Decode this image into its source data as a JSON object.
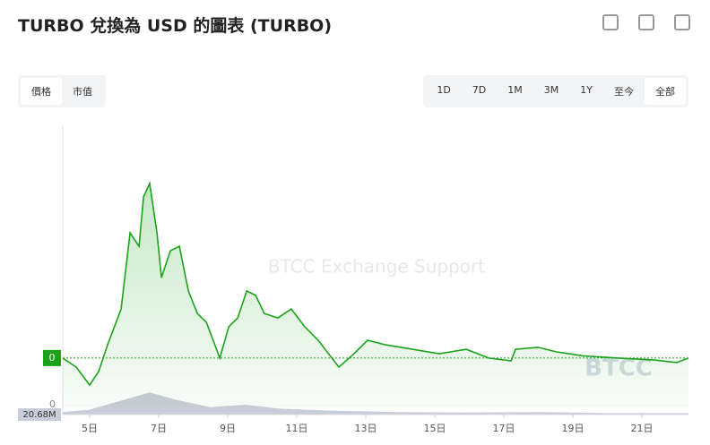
{
  "header": {
    "title": "TURBO 兌換為 USD 的圖表 (TURBO)"
  },
  "tabs": [
    "價格",
    "市值"
  ],
  "ranges": [
    "1D",
    "7D",
    "1M",
    "3M",
    "1Y",
    "至今",
    "全部"
  ],
  "active_range": "全部",
  "chart_data": {
    "type": "line",
    "watermark": "BTCC Exchange Support",
    "logo": "BTCC",
    "price_tag": "0",
    "volume_zero": "0",
    "volume_tag": "20.68M",
    "x": [
      4.22,
      4.61,
      5.0,
      5.26,
      5.52,
      5.91,
      6.17,
      6.43,
      6.56,
      6.74,
      6.95,
      7.08,
      7.34,
      7.6,
      7.73,
      7.86,
      8.12,
      8.38,
      8.77,
      9.03,
      9.29,
      9.55,
      9.81,
      10.06,
      10.45,
      10.84,
      11.23,
      11.62,
      12.22,
      12.66,
      13.05,
      13.57,
      14.35,
      15.13,
      15.91,
      16.56,
      17.21,
      17.34,
      17.99,
      18.51,
      19.29,
      20.32,
      21.36,
      22.01,
      22.35
    ],
    "series": [
      {
        "name": "TURBO",
        "color": "#1aa31a",
        "values": [
          1.75,
          1.43,
          0.79,
          1.27,
          2.22,
          3.49,
          6.19,
          5.71,
          7.46,
          7.94,
          6.19,
          4.6,
          5.56,
          5.71,
          4.92,
          4.13,
          3.33,
          3.02,
          1.75,
          2.86,
          3.17,
          4.13,
          3.97,
          3.33,
          3.17,
          3.49,
          2.86,
          2.38,
          1.43,
          1.9,
          2.38,
          2.22,
          2.06,
          1.9,
          2.06,
          1.75,
          1.65,
          2.06,
          2.13,
          1.97,
          1.83,
          1.75,
          1.68,
          1.59,
          1.75
        ]
      },
      {
        "name": "Volume",
        "color": "#c9ccd9",
        "axis": "y2",
        "x": [
          4.22,
          5.0,
          6.0,
          6.74,
          7.5,
          8.5,
          9.5,
          10.5,
          12.0,
          14.0,
          16.0,
          18.0,
          20.0,
          22.35
        ],
        "values": [
          5,
          10,
          30,
          45,
          30,
          15,
          20,
          12,
          8,
          5,
          4,
          5,
          3,
          3
        ]
      }
    ],
    "xlim": [
      4.22,
      22.35
    ],
    "xticks": [
      {
        "value": 5,
        "label": "5日"
      },
      {
        "value": 7,
        "label": "7日"
      },
      {
        "value": 9,
        "label": "9日"
      },
      {
        "value": 11,
        "label": "11日"
      },
      {
        "value": 13,
        "label": "13日"
      },
      {
        "value": 15,
        "label": "15日"
      },
      {
        "value": 17,
        "label": "17日"
      },
      {
        "value": 19,
        "label": "19日"
      },
      {
        "value": 21,
        "label": "21日"
      }
    ],
    "ylim": [
      0,
      10
    ],
    "y2lim": [
      0,
      60
    ]
  }
}
